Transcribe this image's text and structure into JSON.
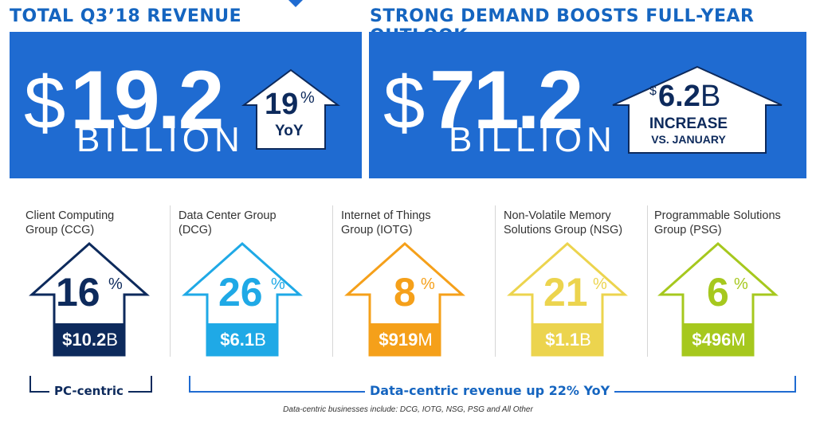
{
  "header": {
    "left_title": "TOTAL Q3’18 REVENUE",
    "right_title": "STRONG DEMAND BOOSTS FULL-YEAR OUTLOOK"
  },
  "revenue": {
    "currency": "$",
    "amount": "19.2",
    "unit": "BILLION",
    "growth_value": "19",
    "growth_sign": "%",
    "growth_label": "YoY"
  },
  "outlook": {
    "currency": "$",
    "amount": "71.2",
    "unit": "BILLION",
    "increase_currency": "$",
    "increase_value": "6.2",
    "increase_unit": "B",
    "increase_line1": "INCREASE",
    "increase_line2": "VS. JANUARY"
  },
  "segments": [
    {
      "label_line1": "Client Computing",
      "label_line2": "Group (CCG)",
      "pct": "16",
      "pct_sign": "%",
      "amount": "$10.2",
      "amount_unit": "B",
      "color": "#0d2a5c"
    },
    {
      "label_line1": "Data Center Group",
      "label_line2": "(DCG)",
      "pct": "26",
      "pct_sign": "%",
      "amount": "$6.1",
      "amount_unit": "B",
      "color": "#1fa9e6"
    },
    {
      "label_line1": "Internet of Things",
      "label_line2": "Group (IOTG)",
      "pct": "8",
      "pct_sign": "%",
      "amount": "$919",
      "amount_unit": "M",
      "color": "#f5a01a"
    },
    {
      "label_line1": "Non-Volatile Memory",
      "label_line2": "Solutions Group (NSG)",
      "pct": "21",
      "pct_sign": "%",
      "amount": "$1.1",
      "amount_unit": "B",
      "color": "#ecd44e"
    },
    {
      "label_line1": "Programmable Solutions",
      "label_line2": "Group (PSG)",
      "pct": "6",
      "pct_sign": "%",
      "amount": "$496",
      "amount_unit": "M",
      "color": "#a6c81e"
    }
  ],
  "bottom": {
    "pc_label": "PC-centric",
    "data_label": "Data-centric revenue up 22% YoY",
    "footnote": "Data-centric businesses include: DCG, IOTG, NSG, PSG and All Other"
  },
  "colors": {
    "brand_blue": "#1f6bd1",
    "header_blue": "#1565c0",
    "dark_navy": "#0d2a5c"
  }
}
